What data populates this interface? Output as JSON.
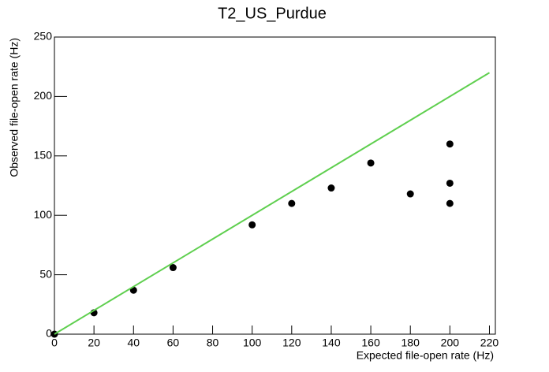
{
  "chart_data": {
    "type": "scatter",
    "title": "T2_US_Purdue",
    "x_label": "Expected file-open rate (Hz)",
    "y_label": "Observed file-open rate (Hz)",
    "series": [
      {
        "type": "scatter",
        "color": "#000000",
        "x": [
          0,
          20,
          40,
          60,
          100,
          120,
          140,
          160,
          180,
          200,
          200,
          200
        ],
        "values": [
          0,
          18,
          37,
          56,
          92,
          110,
          123,
          144,
          118,
          160,
          127,
          110
        ]
      },
      {
        "type": "line",
        "color": "#5fcf4f",
        "x": [
          0,
          220
        ],
        "values": [
          0,
          220
        ]
      }
    ],
    "xlim": [
      0,
      223
    ],
    "ylim": [
      0,
      250
    ],
    "xticks": [
      0,
      20,
      40,
      60,
      80,
      100,
      120,
      140,
      160,
      180,
      200,
      220
    ],
    "yticks": [
      0,
      50,
      100,
      150,
      200,
      250
    ]
  }
}
